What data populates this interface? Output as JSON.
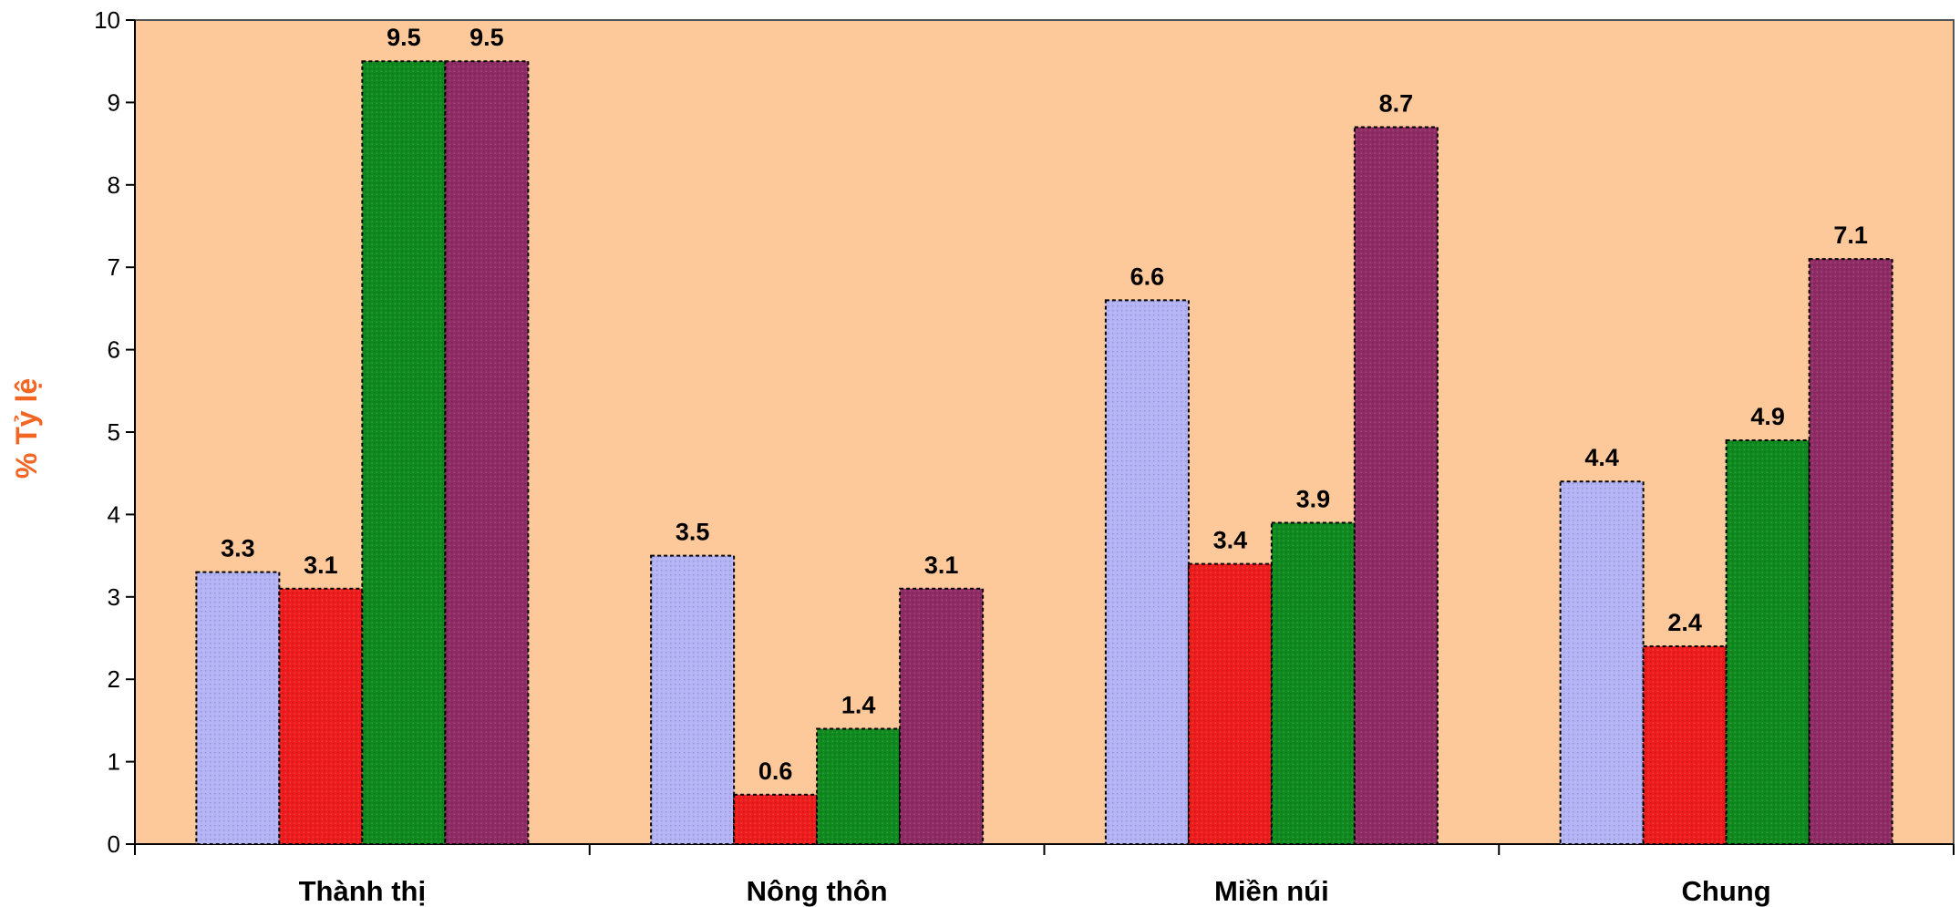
{
  "chart_data": {
    "type": "bar",
    "title": "",
    "xlabel": "",
    "ylabel": "% Tỷ lệ",
    "ylim": [
      0,
      10
    ],
    "yticks": [
      0,
      1,
      2,
      3,
      4,
      5,
      6,
      7,
      8,
      9,
      10
    ],
    "grid": false,
    "legend": "none",
    "categories": [
      "Thành thị",
      "Nông thôn",
      "Miền núi",
      "Chung"
    ],
    "series": [
      {
        "values": [
          3.3,
          3.5,
          6.6,
          4.4
        ],
        "color": "#b3b3f5"
      },
      {
        "values": [
          3.1,
          0.6,
          3.4,
          2.4
        ],
        "color": "#ee1c1c"
      },
      {
        "values": [
          9.5,
          1.4,
          3.9,
          4.9
        ],
        "color": "#0f8a1e"
      },
      {
        "values": [
          9.5,
          3.1,
          8.7,
          7.1
        ],
        "color": "#8f2b65"
      }
    ],
    "plot_background": "#fec99a",
    "ylabel_color": "#f26522"
  }
}
